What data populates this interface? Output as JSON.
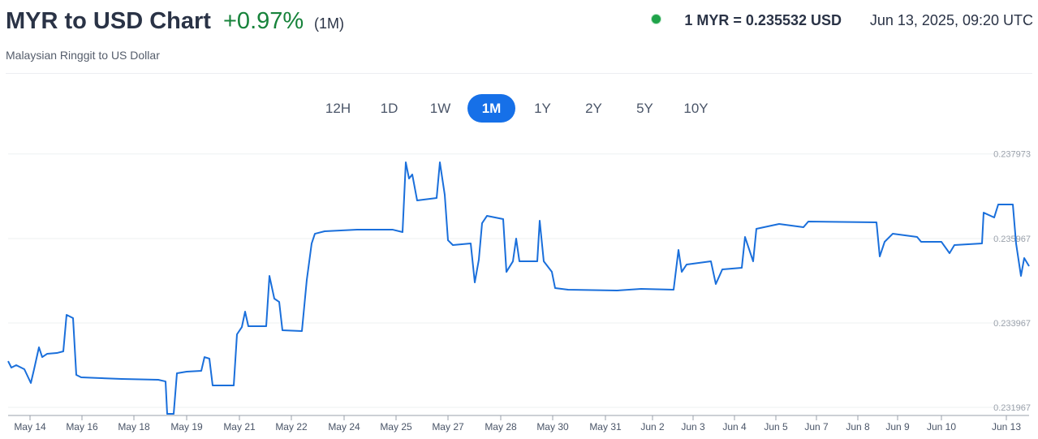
{
  "header": {
    "title": "MYR to USD Chart",
    "change": "+0.97%",
    "period": "(1M)",
    "subtitle": "Malaysian Ringgit to US Dollar",
    "rate": "1 MYR = 0.235532 USD",
    "timestamp": "Jun 13, 2025, 09:20 UTC"
  },
  "range_selector": {
    "options": [
      "12H",
      "1D",
      "1W",
      "1M",
      "1Y",
      "2Y",
      "5Y",
      "10Y"
    ],
    "selected": 3
  },
  "chart_data": {
    "type": "line",
    "color": "#1a6fdb",
    "x": [
      10,
      14,
      20,
      30,
      38,
      42,
      48,
      52,
      58,
      70,
      78,
      82,
      90,
      94,
      100,
      150,
      195,
      204,
      206,
      214,
      218,
      230,
      248,
      252,
      258,
      262,
      288,
      292,
      298,
      302,
      306,
      328,
      332,
      338,
      344,
      348,
      372,
      378,
      384,
      388,
      400,
      440,
      484,
      496,
      500,
      504,
      508,
      514,
      538,
      542,
      548,
      552,
      558,
      580,
      585,
      590,
      594,
      600,
      620,
      624,
      632,
      636,
      640,
      662,
      665,
      670,
      680,
      684,
      700,
      760,
      790,
      830,
      836,
      840,
      846,
      876,
      882,
      890,
      914,
      918,
      928,
      932,
      960,
      990,
      996,
      1080,
      1084,
      1090,
      1100,
      1130,
      1135,
      1160,
      1170,
      1176,
      1210,
      1212,
      1225,
      1230,
      1248,
      1252,
      1258,
      1262,
      1268
    ],
    "values": [
      0.233063,
      0.232909,
      0.232967,
      0.232871,
      0.232544,
      0.232871,
      0.23339,
      0.233159,
      0.233236,
      0.233255,
      0.233294,
      0.234159,
      0.234082,
      0.232736,
      0.232679,
      0.23264,
      0.232621,
      0.232582,
      0.231813,
      0.231813,
      0.232775,
      0.232813,
      0.232832,
      0.233159,
      0.233121,
      0.232486,
      0.232486,
      0.233698,
      0.233871,
      0.234236,
      0.23389,
      0.23389,
      0.235082,
      0.234544,
      0.234467,
      0.233794,
      0.233775,
      0.234986,
      0.235851,
      0.236082,
      0.23614,
      0.236178,
      0.236178,
      0.236121,
      0.237774,
      0.23739,
      0.237486,
      0.236871,
      0.236928,
      0.237774,
      0.237005,
      0.235928,
      0.235813,
      0.235851,
      0.234928,
      0.235467,
      0.236332,
      0.236505,
      0.236428,
      0.235178,
      0.235428,
      0.235967,
      0.235428,
      0.235428,
      0.23639,
      0.235428,
      0.235178,
      0.234794,
      0.234755,
      0.234736,
      0.234775,
      0.234755,
      0.235698,
      0.235178,
      0.235351,
      0.235428,
      0.23489,
      0.235236,
      0.235275,
      0.236005,
      0.235428,
      0.236198,
      0.236313,
      0.236236,
      0.236371,
      0.236351,
      0.235544,
      0.23589,
      0.236082,
      0.236005,
      0.23589,
      0.23589,
      0.235621,
      0.235813,
      0.235851,
      0.236582,
      0.236467,
      0.236775,
      0.236775,
      0.235851,
      0.235082,
      0.235505,
      0.235313
    ],
    "xlim": [
      10,
      1268
    ],
    "ylim": [
      0.2318,
      0.238
    ],
    "yticks": [
      0.231967,
      0.233967,
      0.235967,
      0.237973
    ],
    "xticks": [
      {
        "value": 37,
        "label": "May 14"
      },
      {
        "value": 101,
        "label": "May 16"
      },
      {
        "value": 165,
        "label": "May 18"
      },
      {
        "value": 230,
        "label": "May 19"
      },
      {
        "value": 295,
        "label": "May 21"
      },
      {
        "value": 359,
        "label": "May 22"
      },
      {
        "value": 424,
        "label": "May 24"
      },
      {
        "value": 488,
        "label": "May 25"
      },
      {
        "value": 552,
        "label": "May 27"
      },
      {
        "value": 617,
        "label": "May 28"
      },
      {
        "value": 681,
        "label": "May 30"
      },
      {
        "value": 746,
        "label": "May 31"
      },
      {
        "value": 804,
        "label": "Jun 2"
      },
      {
        "value": 854,
        "label": "Jun 3"
      },
      {
        "value": 905,
        "label": "Jun 4"
      },
      {
        "value": 956,
        "label": "Jun 5"
      },
      {
        "value": 1006,
        "label": "Jun 7"
      },
      {
        "value": 1057,
        "label": "Jun 8"
      },
      {
        "value": 1106,
        "label": "Jun 9"
      },
      {
        "value": 1160,
        "label": "Jun 10"
      },
      {
        "value": 1240,
        "label": "Jun 13"
      }
    ],
    "grid": true
  }
}
